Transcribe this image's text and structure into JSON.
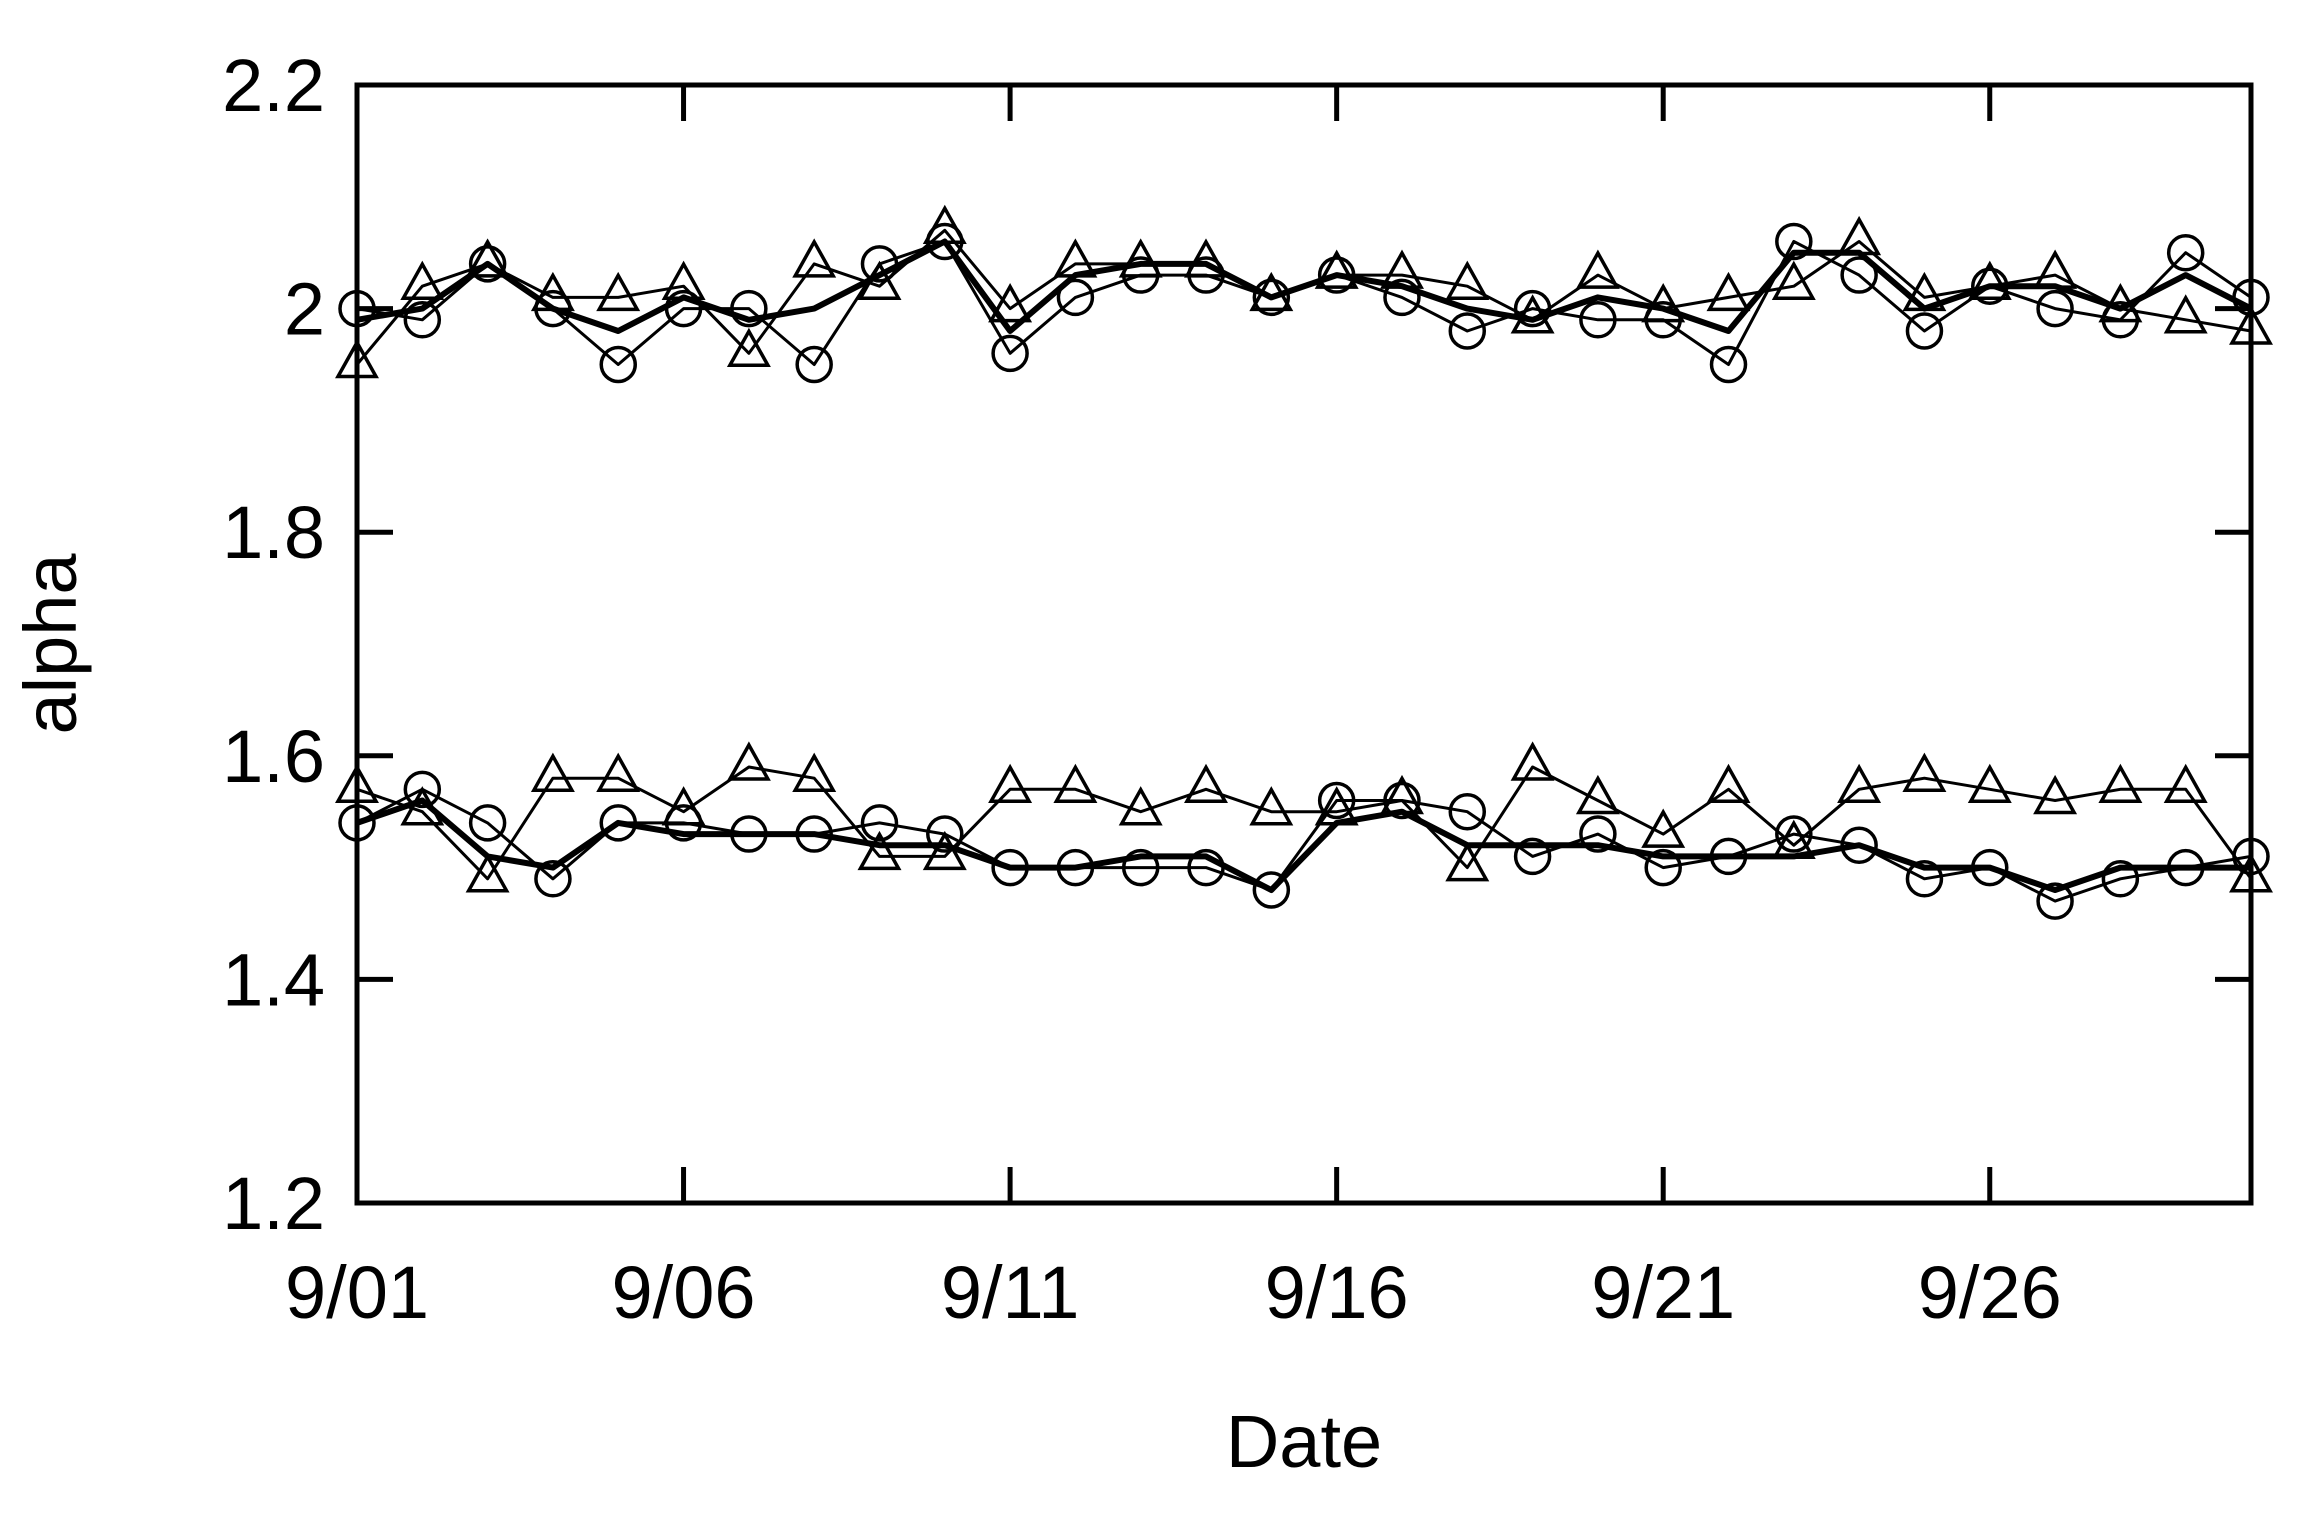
{
  "chart_data": {
    "type": "line",
    "title": "",
    "xlabel": "Date",
    "ylabel": "alpha",
    "xlim": [
      "9/01",
      "9/30"
    ],
    "ylim": [
      1.2,
      2.2
    ],
    "x_ticks": [
      "9/01",
      "9/06",
      "9/11",
      "9/16",
      "9/21",
      "9/26"
    ],
    "y_ticks": [
      "1.2",
      "1.4",
      "1.6",
      "1.8",
      "2",
      "2.2"
    ],
    "grid": false,
    "legend": "none",
    "x": [
      "9/01",
      "9/02",
      "9/03",
      "9/04",
      "9/05",
      "9/06",
      "9/07",
      "9/08",
      "9/09",
      "9/10",
      "9/11",
      "9/12",
      "9/13",
      "9/14",
      "9/15",
      "9/16",
      "9/17",
      "9/18",
      "9/19",
      "9/20",
      "9/21",
      "9/22",
      "9/23",
      "9/24",
      "9/25",
      "9/26",
      "9/27",
      "9/28",
      "9/29",
      "9/30"
    ],
    "series": [
      {
        "marker": "circle",
        "values": [
          2.0,
          1.99,
          2.04,
          2.0,
          1.95,
          2.0,
          2.0,
          1.95,
          2.04,
          2.06,
          1.96,
          2.01,
          2.03,
          2.03,
          2.01,
          2.03,
          2.01,
          1.98,
          2.0,
          1.99,
          1.99,
          1.95,
          2.06,
          2.03,
          1.98,
          2.02,
          2.0,
          1.99,
          2.05,
          2.01
        ]
      },
      {
        "marker": "triangle",
        "values": [
          1.95,
          2.02,
          2.04,
          2.01,
          2.01,
          2.02,
          1.96,
          2.04,
          2.02,
          2.07,
          2.0,
          2.04,
          2.04,
          2.04,
          2.01,
          2.03,
          2.03,
          2.02,
          1.99,
          2.03,
          2.0,
          2.01,
          2.02,
          2.06,
          2.01,
          2.02,
          2.03,
          2.0,
          1.99,
          1.98
        ]
      },
      {
        "marker": "none",
        "values": [
          1.99,
          2.0,
          2.04,
          2.0,
          1.98,
          2.01,
          1.99,
          2.0,
          2.03,
          2.06,
          1.98,
          2.03,
          2.04,
          2.04,
          2.01,
          2.03,
          2.02,
          2.0,
          1.99,
          2.01,
          2.0,
          1.98,
          2.05,
          2.05,
          2.0,
          2.02,
          2.02,
          2.0,
          2.03,
          2.0
        ]
      },
      {
        "marker": "circle",
        "values": [
          1.54,
          1.57,
          1.54,
          1.49,
          1.54,
          1.54,
          1.53,
          1.53,
          1.54,
          1.53,
          1.5,
          1.5,
          1.5,
          1.5,
          1.48,
          1.56,
          1.56,
          1.55,
          1.51,
          1.53,
          1.5,
          1.51,
          1.53,
          1.52,
          1.49,
          1.5,
          1.47,
          1.49,
          1.5,
          1.51
        ]
      },
      {
        "marker": "triangle",
        "values": [
          1.57,
          1.55,
          1.49,
          1.58,
          1.58,
          1.55,
          1.59,
          1.58,
          1.51,
          1.51,
          1.57,
          1.57,
          1.55,
          1.57,
          1.55,
          1.55,
          1.56,
          1.5,
          1.59,
          1.56,
          1.53,
          1.57,
          1.52,
          1.57,
          1.58,
          1.57,
          1.56,
          1.57,
          1.57,
          1.49
        ]
      },
      {
        "marker": "none",
        "values": [
          1.54,
          1.56,
          1.51,
          1.5,
          1.54,
          1.53,
          1.53,
          1.53,
          1.52,
          1.52,
          1.5,
          1.5,
          1.51,
          1.51,
          1.48,
          1.54,
          1.55,
          1.52,
          1.52,
          1.52,
          1.51,
          1.51,
          1.51,
          1.52,
          1.5,
          1.5,
          1.48,
          1.5,
          1.5,
          1.5
        ]
      }
    ]
  }
}
